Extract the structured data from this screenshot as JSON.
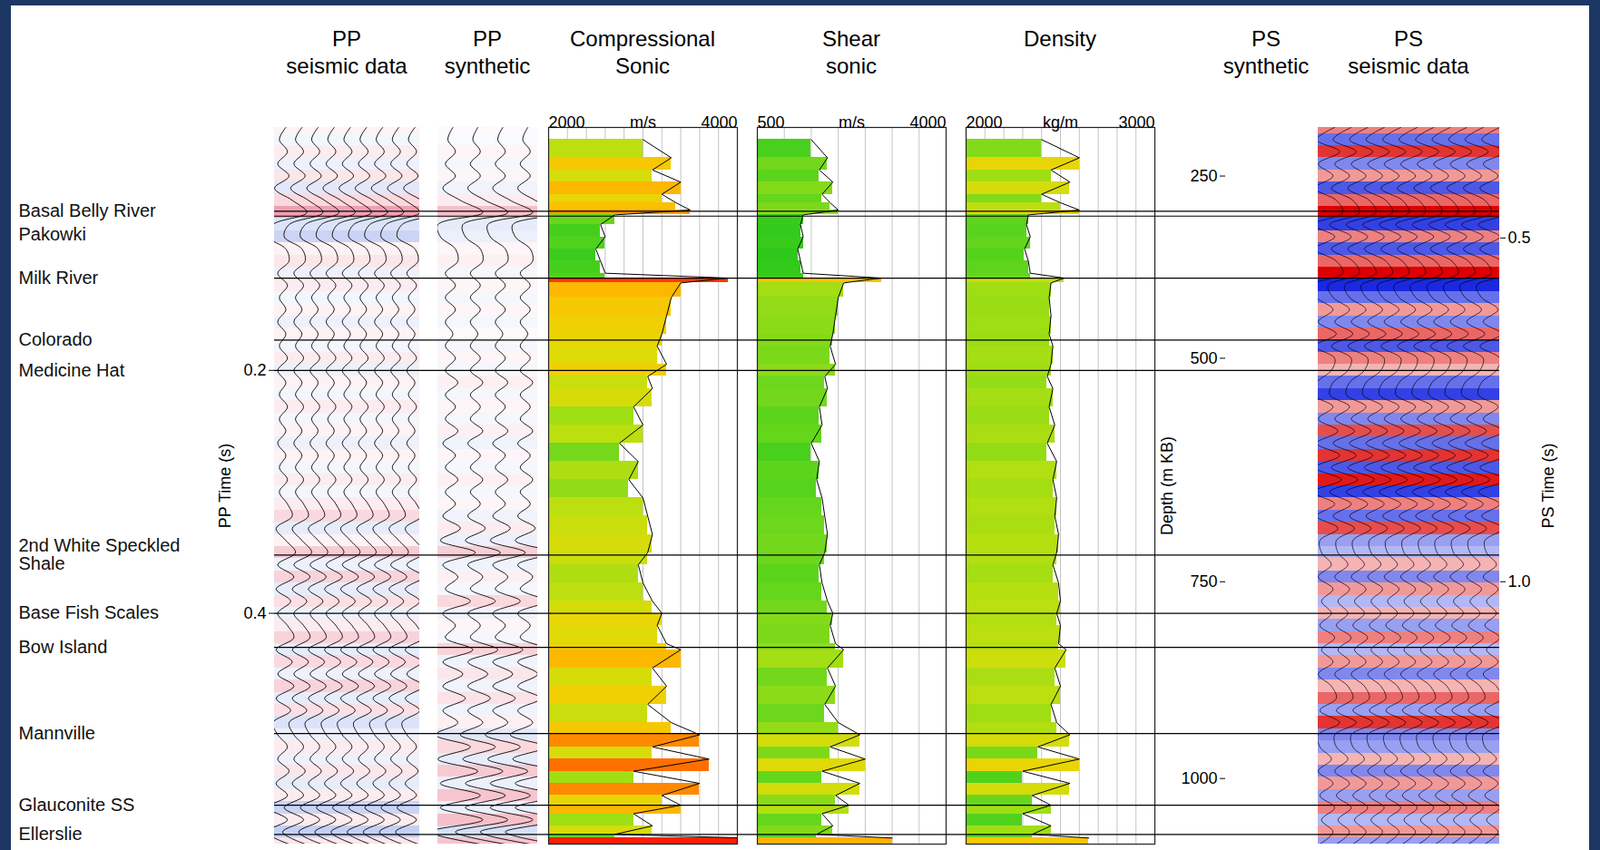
{
  "chart_data": {
    "type": "well_tie",
    "ylim": [
      0,
      0.59
    ],
    "grid": true,
    "pp_time_axis": {
      "label": "PP Time (s)",
      "ticks": [
        0.2,
        0.4
      ]
    },
    "depth_axis": {
      "label": "Depth (m KB)",
      "ticks": [
        {
          "value": 250,
          "pp_time": 0.04
        },
        {
          "value": 500,
          "pp_time": 0.19
        },
        {
          "value": 750,
          "pp_time": 0.374
        },
        {
          "value": 1000,
          "pp_time": 0.536
        }
      ]
    },
    "ps_time_axis": {
      "label": "PS Time (s)",
      "ticks": [
        {
          "value": 0.5,
          "pp_time": 0.091
        },
        {
          "value": 1.0,
          "label": "1.0",
          "pp_time": 0.374
        }
      ]
    },
    "tops": [
      {
        "name": "Basal Belly River",
        "pp_time": 0.069
      },
      {
        "name": "Pakowki",
        "pp_time": 0.073
      },
      {
        "name": "Milk River",
        "pp_time": 0.124
      },
      {
        "name": "Colorado",
        "pp_time": 0.175
      },
      {
        "name": "Medicine Hat",
        "pp_time": 0.2
      },
      {
        "name": "2nd White Speckled Shale",
        "pp_time": 0.352
      },
      {
        "name": "Base Fish Scales",
        "pp_time": 0.4
      },
      {
        "name": "Bow Island",
        "pp_time": 0.428
      },
      {
        "name": "Mannville",
        "pp_time": 0.499
      },
      {
        "name": "Glauconite SS",
        "pp_time": 0.558
      },
      {
        "name": "Ellerslie",
        "pp_time": 0.582
      }
    ],
    "trace_time": [
      0,
      0.01,
      0.02,
      0.03,
      0.04,
      0.05,
      0.06,
      0.07,
      0.08,
      0.09,
      0.1,
      0.11,
      0.12,
      0.13,
      0.14,
      0.15,
      0.16,
      0.17,
      0.18,
      0.19,
      0.2,
      0.21,
      0.22,
      0.23,
      0.24,
      0.25,
      0.26,
      0.27,
      0.28,
      0.29,
      0.3,
      0.31,
      0.32,
      0.33,
      0.34,
      0.35,
      0.36,
      0.37,
      0.38,
      0.39,
      0.4,
      0.41,
      0.42,
      0.43,
      0.44,
      0.45,
      0.46,
      0.47,
      0.48,
      0.49,
      0.5,
      0.51,
      0.52,
      0.53,
      0.54,
      0.55,
      0.56,
      0.57,
      0.58,
      0.59
    ],
    "log_time": [
      0.01,
      0.025,
      0.035,
      0.045,
      0.055,
      0.062,
      0.068,
      0.072,
      0.08,
      0.09,
      0.1,
      0.11,
      0.12,
      0.124,
      0.128,
      0.14,
      0.155,
      0.17,
      0.18,
      0.195,
      0.205,
      0.215,
      0.23,
      0.245,
      0.26,
      0.275,
      0.29,
      0.305,
      0.32,
      0.335,
      0.35,
      0.36,
      0.375,
      0.39,
      0.4,
      0.41,
      0.425,
      0.43,
      0.445,
      0.46,
      0.475,
      0.49,
      0.5,
      0.51,
      0.52,
      0.53,
      0.54,
      0.55,
      0.558,
      0.565,
      0.575,
      0.582,
      0.585
    ],
    "panels": [
      {
        "title": "PP seismic data",
        "type": "pp_seismic",
        "values": [
          0.2,
          -0.2,
          0.3,
          -0.3,
          0.4,
          -0.5,
          0.6,
          1.5,
          -0.6,
          -0.9,
          0.2,
          0.4,
          -0.3,
          0.3,
          -0.2,
          0.2,
          -0.3,
          0.2,
          -0.2,
          0.3,
          -0.3,
          0.2,
          -0.2,
          0.3,
          -0.2,
          0.2,
          -0.3,
          0.2,
          -0.2,
          0.3,
          -0.2,
          0.3,
          0.6,
          -0.4,
          0.2,
          0.8,
          -0.3,
          0.7,
          -0.4,
          0.5,
          -0.3,
          0.3,
          0.7,
          -0.4,
          0.6,
          -0.3,
          0.7,
          -0.4,
          0.5,
          -0.6,
          -0.3,
          0.3,
          -0.3,
          0.4,
          -0.4,
          0.3,
          -0.9,
          0.3,
          -1.0,
          0.4
        ]
      },
      {
        "title": "PP synthetic",
        "type": "pp_synthetic",
        "values": [
          0.1,
          -0.1,
          0.2,
          -0.2,
          0.2,
          -0.3,
          0.4,
          1.3,
          -0.5,
          -0.4,
          0.2,
          0.3,
          -0.2,
          0.2,
          -0.2,
          0.2,
          -0.2,
          0.1,
          -0.2,
          0.2,
          -0.2,
          0.3,
          -0.2,
          0.2,
          -0.2,
          0.3,
          -0.3,
          0.2,
          -0.2,
          0.3,
          -0.2,
          0.2,
          -0.3,
          0.4,
          -0.4,
          1.0,
          -0.3,
          0.3,
          -0.2,
          0.8,
          -0.3,
          0.2,
          -0.2,
          0.9,
          -0.3,
          0.5,
          -0.3,
          0.6,
          -0.3,
          0.3,
          -0.6,
          0.8,
          -0.5,
          1.1,
          -0.4,
          1.2,
          -0.4,
          1.3,
          -0.8,
          1.2
        ]
      },
      {
        "title": "Compressional Sonic",
        "type": "log",
        "xlabel": "m/s",
        "xlim": [
          2000,
          4000
        ],
        "xticks": [
          2000,
          4000
        ],
        "values": [
          3000,
          3300,
          3100,
          3400,
          3200,
          3350,
          3500,
          2700,
          2550,
          2600,
          2500,
          2550,
          2600,
          3900,
          3400,
          3300,
          3250,
          3200,
          3150,
          3250,
          3050,
          3100,
          2900,
          3000,
          2750,
          2950,
          2850,
          3000,
          3050,
          3100,
          3050,
          2950,
          3000,
          3100,
          3200,
          3150,
          3250,
          3400,
          3100,
          3250,
          3050,
          3300,
          3600,
          3100,
          3700,
          2900,
          3600,
          3200,
          3400,
          2900,
          3100,
          2700,
          4100
        ]
      },
      {
        "title": "Shear sonic",
        "type": "log",
        "xlabel": "m/s",
        "xlim": [
          500,
          4000
        ],
        "xticks": [
          500,
          4000
        ],
        "values": [
          1500,
          1800,
          1650,
          1900,
          1700,
          1850,
          2000,
          1350,
          1300,
          1350,
          1250,
          1300,
          1350,
          2800,
          2100,
          2000,
          1950,
          1900,
          1850,
          1950,
          1750,
          1800,
          1650,
          1700,
          1500,
          1650,
          1600,
          1700,
          1750,
          1800,
          1750,
          1650,
          1700,
          1800,
          1900,
          1850,
          1950,
          2100,
          1800,
          1950,
          1750,
          2000,
          2400,
          1850,
          2500,
          1700,
          2400,
          1950,
          2200,
          1700,
          1900,
          1600,
          3000
        ]
      },
      {
        "title": "Density",
        "type": "log",
        "xlabel": "kg/m",
        "xlim": [
          2000,
          3000
        ],
        "xticks": [
          2000,
          3000
        ],
        "values": [
          2400,
          2600,
          2450,
          2550,
          2400,
          2500,
          2600,
          2330,
          2320,
          2340,
          2310,
          2330,
          2340,
          2520,
          2450,
          2440,
          2450,
          2440,
          2460,
          2450,
          2430,
          2460,
          2440,
          2470,
          2430,
          2480,
          2460,
          2480,
          2470,
          2490,
          2480,
          2460,
          2490,
          2500,
          2480,
          2500,
          2490,
          2530,
          2470,
          2500,
          2450,
          2480,
          2550,
          2380,
          2600,
          2300,
          2550,
          2350,
          2450,
          2300,
          2450,
          2350,
          2650
        ]
      },
      {
        "title": "PS synthetic",
        "type": "ps_synthetic",
        "values": [
          0.6,
          -0.5,
          0.7,
          -0.4,
          0.5,
          -0.6,
          1.0,
          0.8,
          -0.6,
          -0.4,
          0.5,
          -0.5,
          1.2,
          -0.4,
          -0.5,
          0.4,
          -0.4,
          0.5,
          -0.3,
          0.4,
          -0.4,
          0.5,
          -0.4,
          0.3,
          -0.5,
          0.6,
          -0.5,
          0.4,
          -0.6,
          0.5,
          -0.7,
          0.6,
          -0.5,
          0.7,
          -0.8,
          0.5,
          -0.5,
          0.3,
          -0.6,
          0.5,
          -0.4,
          0.3,
          -0.5,
          0.6,
          -0.4,
          0.5,
          -0.6,
          0.4,
          -0.5,
          -0.9,
          0.6,
          -0.4,
          0.5,
          -0.6,
          0.4,
          -0.9,
          1.2,
          -0.6,
          1.0,
          -0.4
        ]
      },
      {
        "title": "PS seismic data",
        "type": "ps_seismic",
        "values": [
          0.5,
          -0.6,
          0.8,
          -0.5,
          0.4,
          -0.7,
          0.6,
          1.0,
          -0.8,
          0.5,
          -0.7,
          0.6,
          1.0,
          -0.9,
          -0.6,
          0.4,
          -0.5,
          0.6,
          -0.7,
          0.5,
          0.3,
          -0.6,
          -0.8,
          0.4,
          -0.5,
          0.7,
          -0.6,
          0.8,
          -0.7,
          0.9,
          -0.8,
          0.5,
          -0.6,
          0.7,
          -0.4,
          -0.3,
          0.3,
          -0.5,
          0.4,
          -0.3,
          0.3,
          -0.4,
          0.5,
          -0.3,
          0.4,
          -0.5,
          0.3,
          0.6,
          -0.4,
          0.8,
          -0.5,
          -0.4,
          0.3,
          -0.5,
          0.4,
          -0.4,
          0.5,
          -0.3,
          0.4,
          -0.4
        ]
      }
    ]
  }
}
